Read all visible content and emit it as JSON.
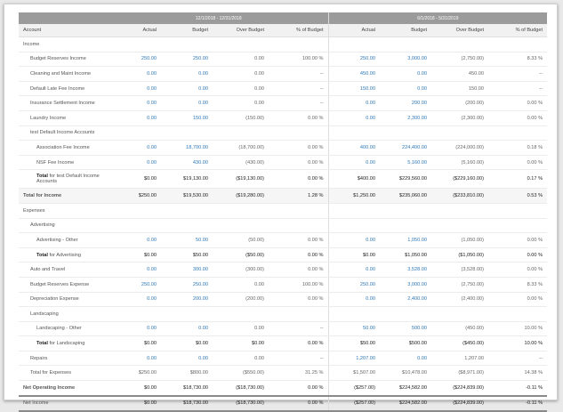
{
  "periods": [
    "12/1/2018 - 12/31/2018",
    "6/1/2018 - 5/31/2019"
  ],
  "columns": {
    "account": "Account",
    "period_cols": [
      "Actual",
      "Budget",
      "Over Budget",
      "% of Budget"
    ]
  },
  "colors": {
    "link": "#2f79b9",
    "header_bar": "#9b9b9b"
  },
  "rows": [
    {
      "type": "section",
      "level": 0,
      "label": "Income",
      "v": [
        "",
        "",
        "",
        "",
        "",
        "",
        "",
        ""
      ]
    },
    {
      "type": "item",
      "level": 1,
      "label": "Budget Reserves Income",
      "v": [
        "250.00",
        "250.00",
        "0.00",
        "100.00 %",
        "250.00",
        "3,000.00",
        "(2,750.00)",
        "8.33 %"
      ]
    },
    {
      "type": "item",
      "level": 1,
      "label": "Cleaning and Maint Income",
      "v": [
        "0.00",
        "0.00",
        "0.00",
        "--",
        "450.00",
        "0.00",
        "450.00",
        "--"
      ]
    },
    {
      "type": "item",
      "level": 1,
      "label": "Default Late Fee Income",
      "v": [
        "0.00",
        "0.00",
        "0.00",
        "--",
        "150.00",
        "0.00",
        "150.00",
        "--"
      ]
    },
    {
      "type": "item",
      "level": 1,
      "label": "Insurance Settlement Income",
      "v": [
        "0.00",
        "0.00",
        "0.00",
        "--",
        "0.00",
        "200.00",
        "(200.00)",
        "0.00 %"
      ]
    },
    {
      "type": "item",
      "level": 1,
      "label": "Laundry Income",
      "v": [
        "0.00",
        "150.00",
        "(150.00)",
        "0.00 %",
        "0.00",
        "2,300.00",
        "(2,300.00)",
        "0.00 %"
      ]
    },
    {
      "type": "section",
      "level": 1,
      "label": "test Default Income Accounts",
      "v": [
        "",
        "",
        "",
        "",
        "",
        "",
        "",
        ""
      ]
    },
    {
      "type": "item",
      "level": 2,
      "label": "Association Fee Income",
      "v": [
        "0.00",
        "18,700.00",
        "(18,700.00)",
        "0.00 %",
        "400.00",
        "224,400.00",
        "(224,000.00)",
        "0.18 %"
      ]
    },
    {
      "type": "item",
      "level": 2,
      "label": "NSF Fee Income",
      "v": [
        "0.00",
        "430.00",
        "(430.00)",
        "0.00 %",
        "0.00",
        "5,160.00",
        "(5,160.00)",
        "0.00 %"
      ]
    },
    {
      "type": "total",
      "level": 2,
      "tall": true,
      "label": "Total for test Default Income Accounts",
      "label_bold": "Total",
      "label_rest": " for test Default Income Accounts",
      "v": [
        "$0.00",
        "$19,130.00",
        "($19,130.00)",
        "0.00 %",
        "$400.00",
        "$229,560.00",
        "($229,160.00)",
        "0.17 %"
      ]
    },
    {
      "type": "grand",
      "level": 0,
      "label": "Total for Income",
      "v": [
        "$250.00",
        "$19,530.00",
        "($19,280.00)",
        "1.28 %",
        "$1,250.00",
        "$235,060.00",
        "($233,810.00)",
        "0.53 %"
      ]
    },
    {
      "type": "section",
      "level": 0,
      "label": "Expenses",
      "v": [
        "",
        "",
        "",
        "",
        "",
        "",
        "",
        ""
      ]
    },
    {
      "type": "section",
      "level": 1,
      "label": "Advertising",
      "v": [
        "",
        "",
        "",
        "",
        "",
        "",
        "",
        ""
      ]
    },
    {
      "type": "item",
      "level": 2,
      "label": "Advertising - Other",
      "v": [
        "0.00",
        "50.00",
        "(50.00)",
        "0.00 %",
        "0.00",
        "1,050.00",
        "(1,050.00)",
        "0.00 %"
      ]
    },
    {
      "type": "total",
      "level": 2,
      "label": "Total for Advertising",
      "label_bold": "Total",
      "label_rest": " for Advertising",
      "v": [
        "$0.00",
        "$50.00",
        "($50.00)",
        "0.00 %",
        "$0.00",
        "$1,050.00",
        "($1,050.00)",
        "0.00 %"
      ]
    },
    {
      "type": "item",
      "level": 1,
      "label": "Auto and Travel",
      "v": [
        "0.00",
        "300.00",
        "(300.00)",
        "0.00 %",
        "0.00",
        "3,528.00",
        "(3,528.00)",
        "0.00 %"
      ]
    },
    {
      "type": "item",
      "level": 1,
      "label": "Budget Reserves Expense",
      "v": [
        "250.00",
        "250.00",
        "0.00",
        "100.00 %",
        "250.00",
        "3,000.00",
        "(2,750.00)",
        "8.33 %"
      ]
    },
    {
      "type": "item",
      "level": 1,
      "label": "Depreciation Expense",
      "v": [
        "0.00",
        "200.00",
        "(200.00)",
        "0.00 %",
        "0.00",
        "2,400.00",
        "(2,400.00)",
        "0.00 %"
      ]
    },
    {
      "type": "section",
      "level": 1,
      "label": "Landscaping",
      "v": [
        "",
        "",
        "",
        "",
        "",
        "",
        "",
        ""
      ]
    },
    {
      "type": "item",
      "level": 2,
      "label": "Landscaping - Other",
      "v": [
        "0.00",
        "0.00",
        "0.00",
        "--",
        "50.00",
        "500.00",
        "(450.00)",
        "10.00 %"
      ]
    },
    {
      "type": "total",
      "level": 2,
      "label": "Total for Landscaping",
      "label_bold": "Total",
      "label_rest": " for Landscaping",
      "v": [
        "$0.00",
        "$0.00",
        "$0.00",
        "0.00 %",
        "$50.00",
        "$500.00",
        "($450.00)",
        "10.00 %"
      ]
    },
    {
      "type": "item",
      "level": 1,
      "label": "Repairs",
      "v": [
        "0.00",
        "0.00",
        "0.00",
        "--",
        "1,207.00",
        "0.00",
        "1,207.00",
        "--"
      ]
    },
    {
      "type": "plain",
      "level": 1,
      "label": "Total for Expenses",
      "v": [
        "$250.00",
        "$800.00",
        "($550.00)",
        "31.25 %",
        "$1,507.00",
        "$10,478.00",
        "($8,971.00)",
        "14.38 %"
      ]
    },
    {
      "type": "noi",
      "level": 0,
      "label": "Net Operating Income",
      "v": [
        "$0.00",
        "$18,730.00",
        "($18,730.00)",
        "0.00 %",
        "($257.00)",
        "$224,582.00",
        "($224,839.00)",
        "-0.11 %"
      ]
    },
    {
      "type": "ni",
      "level": 0,
      "label": "Net Income",
      "v": [
        "$0.00",
        "$18,730.00",
        "($18,730.00)",
        "0.00 %",
        "($257.00)",
        "$224,582.00",
        "($224,839.00)",
        "-0.11 %"
      ]
    }
  ]
}
